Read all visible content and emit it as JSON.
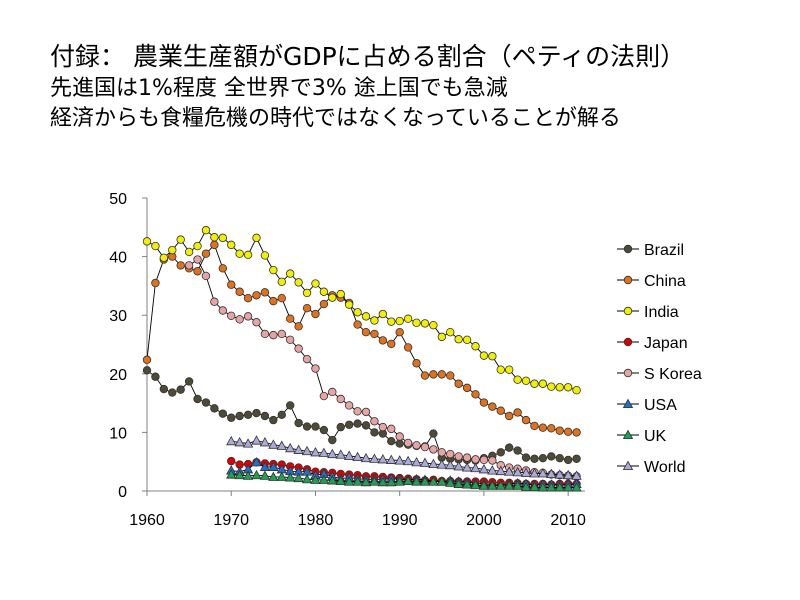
{
  "heading": {
    "line1": "付録：  農業生産額がGDPに占める割合（ペティの法則）",
    "line2": "先進国は1%程度   全世界で3%   途上国でも急減",
    "line3": "経済からも食糧危機の時代ではなくなっていることが解る"
  },
  "colors": {
    "Brazil": "#4d4a35",
    "China": "#e0711d",
    "India": "#f0f000",
    "Japan": "#dd0000",
    "S Korea": "#e8a3a3",
    "USA": "#1f6fd1",
    "UK": "#20a050",
    "World": "#aaaadd"
  },
  "chart_data": {
    "type": "line",
    "xlim": [
      1960,
      2012
    ],
    "ylim": [
      0,
      50
    ],
    "xticks": [
      1960,
      1970,
      1980,
      1990,
      2000,
      2010
    ],
    "yticks": [
      0,
      10,
      20,
      30,
      40,
      50
    ],
    "legend_position": "right",
    "grid": false,
    "series": [
      {
        "name": "Brazil",
        "marker": "circle",
        "x_start": 1960,
        "values": [
          20.6,
          19.5,
          17.4,
          16.8,
          17.3,
          18.7,
          15.7,
          15.1,
          14.1,
          13.2,
          12.5,
          12.8,
          13.0,
          13.3,
          12.8,
          12.1,
          13.0,
          14.6,
          11.6,
          11.0,
          11.0,
          10.4,
          8.7,
          10.9,
          11.3,
          11.5,
          11.2,
          10.0,
          9.8,
          8.5,
          8.1,
          7.9,
          7.7,
          7.6,
          9.8,
          5.7,
          5.5,
          5.4,
          5.3,
          5.2,
          5.6,
          6.0,
          6.6,
          7.4,
          6.9,
          5.7,
          5.5,
          5.6,
          5.9,
          5.6,
          5.3,
          5.5
        ]
      },
      {
        "name": "China",
        "marker": "circle",
        "x_start": 1960,
        "values": [
          22.4,
          35.5,
          39.5,
          40.0,
          38.5,
          38.0,
          37.5,
          40.5,
          42.0,
          38.0,
          35.2,
          34.0,
          32.9,
          33.4,
          33.9,
          32.4,
          32.9,
          29.4,
          28.1,
          31.2,
          30.2,
          31.9,
          33.4,
          33.0,
          32.1,
          28.4,
          27.1,
          26.8,
          25.7,
          25.1,
          27.1,
          24.5,
          21.8,
          19.7,
          19.9,
          19.9,
          19.7,
          18.3,
          17.6,
          16.5,
          15.1,
          14.4,
          13.7,
          12.8,
          13.4,
          12.1,
          11.1,
          10.8,
          10.7,
          10.3,
          10.1,
          10.0
        ]
      },
      {
        "name": "India",
        "marker": "circle",
        "x_start": 1960,
        "values": [
          42.6,
          41.8,
          39.8,
          41.1,
          42.9,
          40.8,
          41.8,
          44.5,
          43.3,
          43.2,
          42.0,
          40.5,
          40.3,
          43.2,
          40.2,
          37.7,
          35.7,
          37.1,
          35.6,
          33.8,
          35.4,
          34.0,
          33.0,
          33.6,
          31.8,
          30.5,
          29.8,
          29.1,
          30.2,
          28.9,
          29.0,
          29.4,
          28.7,
          28.6,
          28.3,
          26.3,
          27.1,
          25.9,
          25.8,
          24.7,
          23.1,
          23.0,
          20.7,
          20.7,
          19.0,
          18.8,
          18.3,
          18.3,
          17.8,
          17.7,
          17.7,
          17.2
        ]
      },
      {
        "name": "Japan",
        "marker": "circle",
        "x_start": 1970,
        "values": [
          5.1,
          4.5,
          4.6,
          4.9,
          4.7,
          4.6,
          4.5,
          4.2,
          4.0,
          3.7,
          3.3,
          3.2,
          3.1,
          2.9,
          2.8,
          2.7,
          2.5,
          2.5,
          2.4,
          2.3,
          2.2,
          2.1,
          2.0,
          1.8,
          1.9,
          1.7,
          1.7,
          1.6,
          1.6,
          1.6,
          1.6,
          1.5,
          1.4,
          1.4,
          1.3,
          1.2,
          1.2,
          1.2,
          1.1,
          1.2,
          1.2,
          1.2
        ]
      },
      {
        "name": "S Korea",
        "marker": "circle",
        "x_start": 1960,
        "values": [
          null,
          null,
          null,
          null,
          null,
          38.5,
          39.5,
          36.7,
          32.3,
          30.8,
          29.9,
          29.3,
          29.8,
          28.8,
          26.8,
          26.6,
          26.8,
          25.8,
          24.3,
          22.5,
          20.9,
          16.2,
          16.9,
          15.7,
          14.6,
          13.6,
          13.5,
          11.9,
          10.9,
          10.6,
          9.3,
          8.2,
          7.8,
          7.5,
          7.1,
          6.6,
          6.3,
          5.9,
          5.7,
          5.4,
          5.3,
          5.2,
          4.4,
          4.0,
          3.8,
          3.5,
          3.2,
          3.1,
          2.8,
          2.7,
          2.6,
          2.5
        ]
      },
      {
        "name": "USA",
        "marker": "triangle",
        "x_start": 1970,
        "values": [
          3.5,
          3.3,
          3.7,
          4.9,
          4.1,
          4.1,
          3.7,
          3.4,
          3.3,
          3.3,
          2.7,
          2.9,
          2.5,
          2.1,
          2.3,
          2.1,
          2.0,
          2.0,
          2.0,
          2.1,
          2.0,
          1.9,
          2.0,
          1.9,
          1.7,
          1.6,
          1.8,
          1.6,
          1.5,
          1.3,
          1.2,
          1.1,
          1.0,
          1.2,
          1.3,
          1.2,
          1.0,
          1.1,
          1.1,
          1.0,
          1.1,
          1.2
        ]
      },
      {
        "name": "UK",
        "marker": "triangle",
        "x_start": 1970,
        "values": [
          2.8,
          2.7,
          2.6,
          2.7,
          2.6,
          2.4,
          2.4,
          2.3,
          2.2,
          2.0,
          1.9,
          1.9,
          1.8,
          1.7,
          1.6,
          1.6,
          1.5,
          1.6,
          1.5,
          1.5,
          1.6,
          1.7,
          1.6,
          1.6,
          1.6,
          1.6,
          1.4,
          1.2,
          1.1,
          1.0,
          0.9,
          0.9,
          0.9,
          0.9,
          0.9,
          0.7,
          0.7,
          0.6,
          0.6,
          0.6,
          0.6,
          0.6
        ]
      },
      {
        "name": "World",
        "marker": "triangle",
        "x_start": 1970,
        "values": [
          8.5,
          8.3,
          8.1,
          8.6,
          8.3,
          7.9,
          7.7,
          7.3,
          7.0,
          6.8,
          6.6,
          6.5,
          6.3,
          6.2,
          6.0,
          5.8,
          5.6,
          5.5,
          5.4,
          5.3,
          5.2,
          5.1,
          4.9,
          4.8,
          4.6,
          4.5,
          4.4,
          4.2,
          4.0,
          3.9,
          3.7,
          3.5,
          3.4,
          3.3,
          3.2,
          3.1,
          3.0,
          3.0,
          2.9,
          2.8,
          2.7,
          2.6
        ]
      }
    ]
  }
}
